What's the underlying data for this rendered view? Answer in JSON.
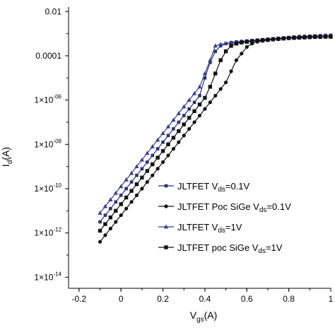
{
  "chart_data": {
    "type": "line",
    "title": "",
    "xlabel": "V<sub>gs</sub>(A)",
    "xlabel_main": "V",
    "xlabel_sub": "gs",
    "xlabel_tail": "(A)",
    "ylabel_main": "I",
    "ylabel_sub": "d",
    "ylabel_tail": "(A)",
    "xlim": [
      -0.25,
      1.0
    ],
    "ylim_log10": [
      -14.5,
      -1.8
    ],
    "y_scale": "log",
    "grid": false,
    "legend_position": "center-right",
    "x_ticks": [
      -0.2,
      0,
      0.2,
      0.4,
      0.6,
      0.8,
      1
    ],
    "x_tick_labels": [
      "-0.2",
      "0",
      "0.2",
      "0.4",
      "0.6",
      "0.8",
      "1"
    ],
    "y_ticks": [
      {
        "log10": -2,
        "base": "0.01",
        "exp": ""
      },
      {
        "log10": -4,
        "base": "0.0001",
        "exp": ""
      },
      {
        "log10": -6,
        "base": "1×10",
        "exp": "-06"
      },
      {
        "log10": -8,
        "base": "1×10",
        "exp": "-08"
      },
      {
        "log10": -10,
        "base": "1×10",
        "exp": "-10"
      },
      {
        "log10": -12,
        "base": "1×10",
        "exp": "-12"
      },
      {
        "log10": -14,
        "base": "1×10",
        "exp": "-14"
      }
    ],
    "series": [
      {
        "legend_main": "JLTFET V",
        "legend_sub": "ds",
        "legend_tail": "=0.1V",
        "color": "#2b2f7a",
        "marker": "square-small",
        "x": [
          -0.1,
          -0.075,
          -0.05,
          -0.025,
          0,
          0.025,
          0.05,
          0.075,
          0.1,
          0.125,
          0.15,
          0.175,
          0.2,
          0.225,
          0.25,
          0.275,
          0.3,
          0.325,
          0.35,
          0.375,
          0.4,
          0.425,
          0.45,
          0.475,
          0.5,
          0.525,
          0.55,
          0.575,
          0.6,
          0.625,
          0.65,
          0.675,
          0.7,
          0.725,
          0.75,
          0.775,
          0.8,
          0.825,
          0.85,
          0.875,
          0.9,
          0.925,
          0.95,
          0.975,
          1.0
        ],
        "y_log10": [
          -11.5,
          -11.2,
          -10.9,
          -10.6,
          -10.3,
          -10.0,
          -9.7,
          -9.4,
          -9.1,
          -8.8,
          -8.5,
          -8.2,
          -7.9,
          -7.6,
          -7.3,
          -7.0,
          -6.7,
          -6.4,
          -6.1,
          -5.8,
          -5.0,
          -4.3,
          -3.8,
          -3.55,
          -3.45,
          -3.4,
          -3.37,
          -3.35,
          -3.33,
          -3.31,
          -3.29,
          -3.27,
          -3.25,
          -3.23,
          -3.21,
          -3.19,
          -3.17,
          -3.15,
          -3.13,
          -3.12,
          -3.11,
          -3.1,
          -3.09,
          -3.08,
          -3.07
        ]
      },
      {
        "legend_main": "JLTFET Poc SiGe V",
        "legend_sub": "ds",
        "legend_tail": "=0.1V",
        "color": "#111111",
        "marker": "circle",
        "x": [
          -0.1,
          -0.075,
          -0.05,
          -0.025,
          0,
          0.025,
          0.05,
          0.075,
          0.1,
          0.125,
          0.15,
          0.175,
          0.2,
          0.225,
          0.25,
          0.275,
          0.3,
          0.325,
          0.35,
          0.375,
          0.4,
          0.425,
          0.45,
          0.475,
          0.5,
          0.525,
          0.55,
          0.575,
          0.6,
          0.625,
          0.65,
          0.675,
          0.7,
          0.725,
          0.75,
          0.775,
          0.8,
          0.825,
          0.85,
          0.875,
          0.9,
          0.925,
          0.95,
          0.975,
          1.0
        ],
        "y_log10": [
          -12.4,
          -12.1,
          -11.8,
          -11.5,
          -11.2,
          -10.9,
          -10.6,
          -10.3,
          -10.0,
          -9.7,
          -9.4,
          -9.1,
          -8.8,
          -8.5,
          -8.2,
          -7.9,
          -7.6,
          -7.3,
          -7.0,
          -6.7,
          -6.4,
          -6.1,
          -5.8,
          -5.5,
          -5.2,
          -4.7,
          -4.2,
          -3.9,
          -3.6,
          -3.45,
          -3.37,
          -3.33,
          -3.3,
          -3.27,
          -3.25,
          -3.23,
          -3.21,
          -3.2,
          -3.19,
          -3.18,
          -3.17,
          -3.16,
          -3.15,
          -3.15,
          -3.15
        ]
      },
      {
        "legend_main": "JLTFET V",
        "legend_sub": "ds",
        "legend_tail": "=1V",
        "color": "#3b3f8f",
        "marker": "triangle",
        "x": [
          -0.1,
          -0.075,
          -0.05,
          -0.025,
          0,
          0.025,
          0.05,
          0.075,
          0.1,
          0.125,
          0.15,
          0.175,
          0.2,
          0.225,
          0.25,
          0.275,
          0.3,
          0.325,
          0.35,
          0.375,
          0.4,
          0.425,
          0.45,
          0.475,
          0.5,
          0.525,
          0.55,
          0.575,
          0.6,
          0.625,
          0.65,
          0.675,
          0.7,
          0.725,
          0.75,
          0.775,
          0.8,
          0.825,
          0.85,
          0.875,
          0.9,
          0.925,
          0.95,
          0.975,
          1.0
        ],
        "y_log10": [
          -11.1,
          -10.8,
          -10.5,
          -10.2,
          -9.9,
          -9.6,
          -9.3,
          -9.0,
          -8.7,
          -8.4,
          -8.1,
          -7.8,
          -7.5,
          -7.2,
          -6.9,
          -6.6,
          -6.3,
          -6.0,
          -5.7,
          -5.4,
          -4.8,
          -4.2,
          -3.55,
          -3.48,
          -3.45,
          -3.43,
          -3.41,
          -3.39,
          -3.37,
          -3.35,
          -3.33,
          -3.31,
          -3.29,
          -3.27,
          -3.25,
          -3.23,
          -3.21,
          -3.19,
          -3.17,
          -3.15,
          -3.13,
          -3.11,
          -3.1,
          -3.09,
          -3.08
        ]
      },
      {
        "legend_main": "JLTFET poc SiGe V",
        "legend_sub": "ds",
        "legend_tail": "=1V",
        "color": "#111111",
        "marker": "square",
        "x": [
          -0.1,
          -0.075,
          -0.05,
          -0.025,
          0,
          0.025,
          0.05,
          0.075,
          0.1,
          0.125,
          0.15,
          0.175,
          0.2,
          0.225,
          0.25,
          0.275,
          0.3,
          0.325,
          0.35,
          0.375,
          0.4,
          0.425,
          0.45,
          0.475,
          0.5,
          0.525,
          0.55,
          0.575,
          0.6,
          0.625,
          0.65,
          0.675,
          0.7,
          0.725,
          0.75,
          0.775,
          0.8,
          0.825,
          0.85,
          0.875,
          0.9,
          0.925,
          0.95,
          0.975,
          1.0
        ],
        "y_log10": [
          -11.9,
          -11.6,
          -11.3,
          -11.0,
          -10.7,
          -10.4,
          -10.1,
          -9.8,
          -9.5,
          -9.2,
          -8.9,
          -8.6,
          -8.3,
          -8.0,
          -7.7,
          -7.4,
          -7.1,
          -6.8,
          -6.5,
          -6.2,
          -5.9,
          -5.4,
          -4.8,
          -4.2,
          -3.8,
          -3.55,
          -3.45,
          -3.4,
          -3.37,
          -3.34,
          -3.31,
          -3.29,
          -3.27,
          -3.25,
          -3.23,
          -3.21,
          -3.2,
          -3.19,
          -3.18,
          -3.17,
          -3.16,
          -3.15,
          -3.15,
          -3.14,
          -3.14
        ]
      }
    ]
  }
}
